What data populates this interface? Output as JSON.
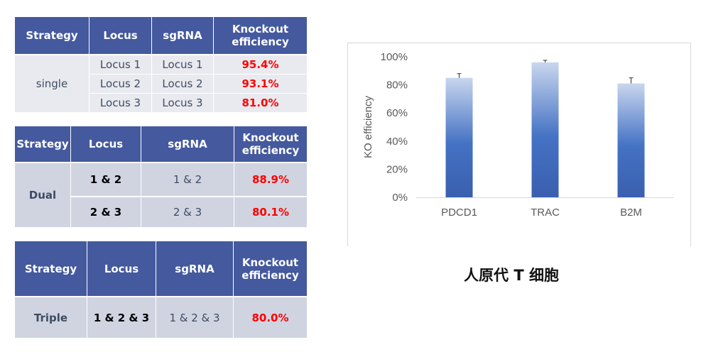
{
  "tables": [
    {
      "headers": [
        "Strategy",
        "Locus",
        "sgRNA",
        "Knockout efficiency"
      ],
      "strategy": "single",
      "rows": [
        {
          "locus": "Locus 1",
          "sgrna": "Locus 1",
          "efficiency": "95.4%"
        },
        {
          "locus": "Locus 2",
          "sgrna": "Locus 2",
          "efficiency": "93.1%"
        },
        {
          "locus": "Locus 3",
          "sgrna": "Locus 3",
          "efficiency": "81.0%"
        }
      ]
    },
    {
      "headers": [
        "Strategy",
        "Locus",
        "sgRNA",
        "Knockout efficiency"
      ],
      "strategy": "Dual",
      "rows": [
        {
          "locus": "1 & 2",
          "sgrna": "1 & 2",
          "efficiency": "88.9%"
        },
        {
          "locus": "2 & 3",
          "sgrna": "2 & 3",
          "efficiency": "80.1%"
        }
      ]
    },
    {
      "headers": [
        "Strategy",
        "Locus",
        "sgRNA",
        "Knockout efficiency"
      ],
      "strategy": "Triple",
      "rows": [
        {
          "locus": "1 & 2 & 3",
          "sgrna": "1 & 2 & 3",
          "efficiency": "80.0%"
        }
      ]
    }
  ],
  "colors": {
    "header": "#44599e",
    "efficiency": "#ff0000",
    "bar_top": "#c9d6ee",
    "bar_mid": "#4472c4",
    "bar_bottom": "#3a5fae"
  },
  "chart_data": {
    "type": "bar",
    "categories": [
      "PDCD1",
      "TRAC",
      "B2M"
    ],
    "values": [
      85,
      96,
      81
    ],
    "error_upper": [
      3,
      1.5,
      4
    ],
    "ylabel": "KO efficiency",
    "ylim": [
      0,
      100
    ],
    "yticks": [
      "0%",
      "20%",
      "40%",
      "60%",
      "80%",
      "100%"
    ],
    "grid": false,
    "caption": "人原代 T 细胞"
  }
}
